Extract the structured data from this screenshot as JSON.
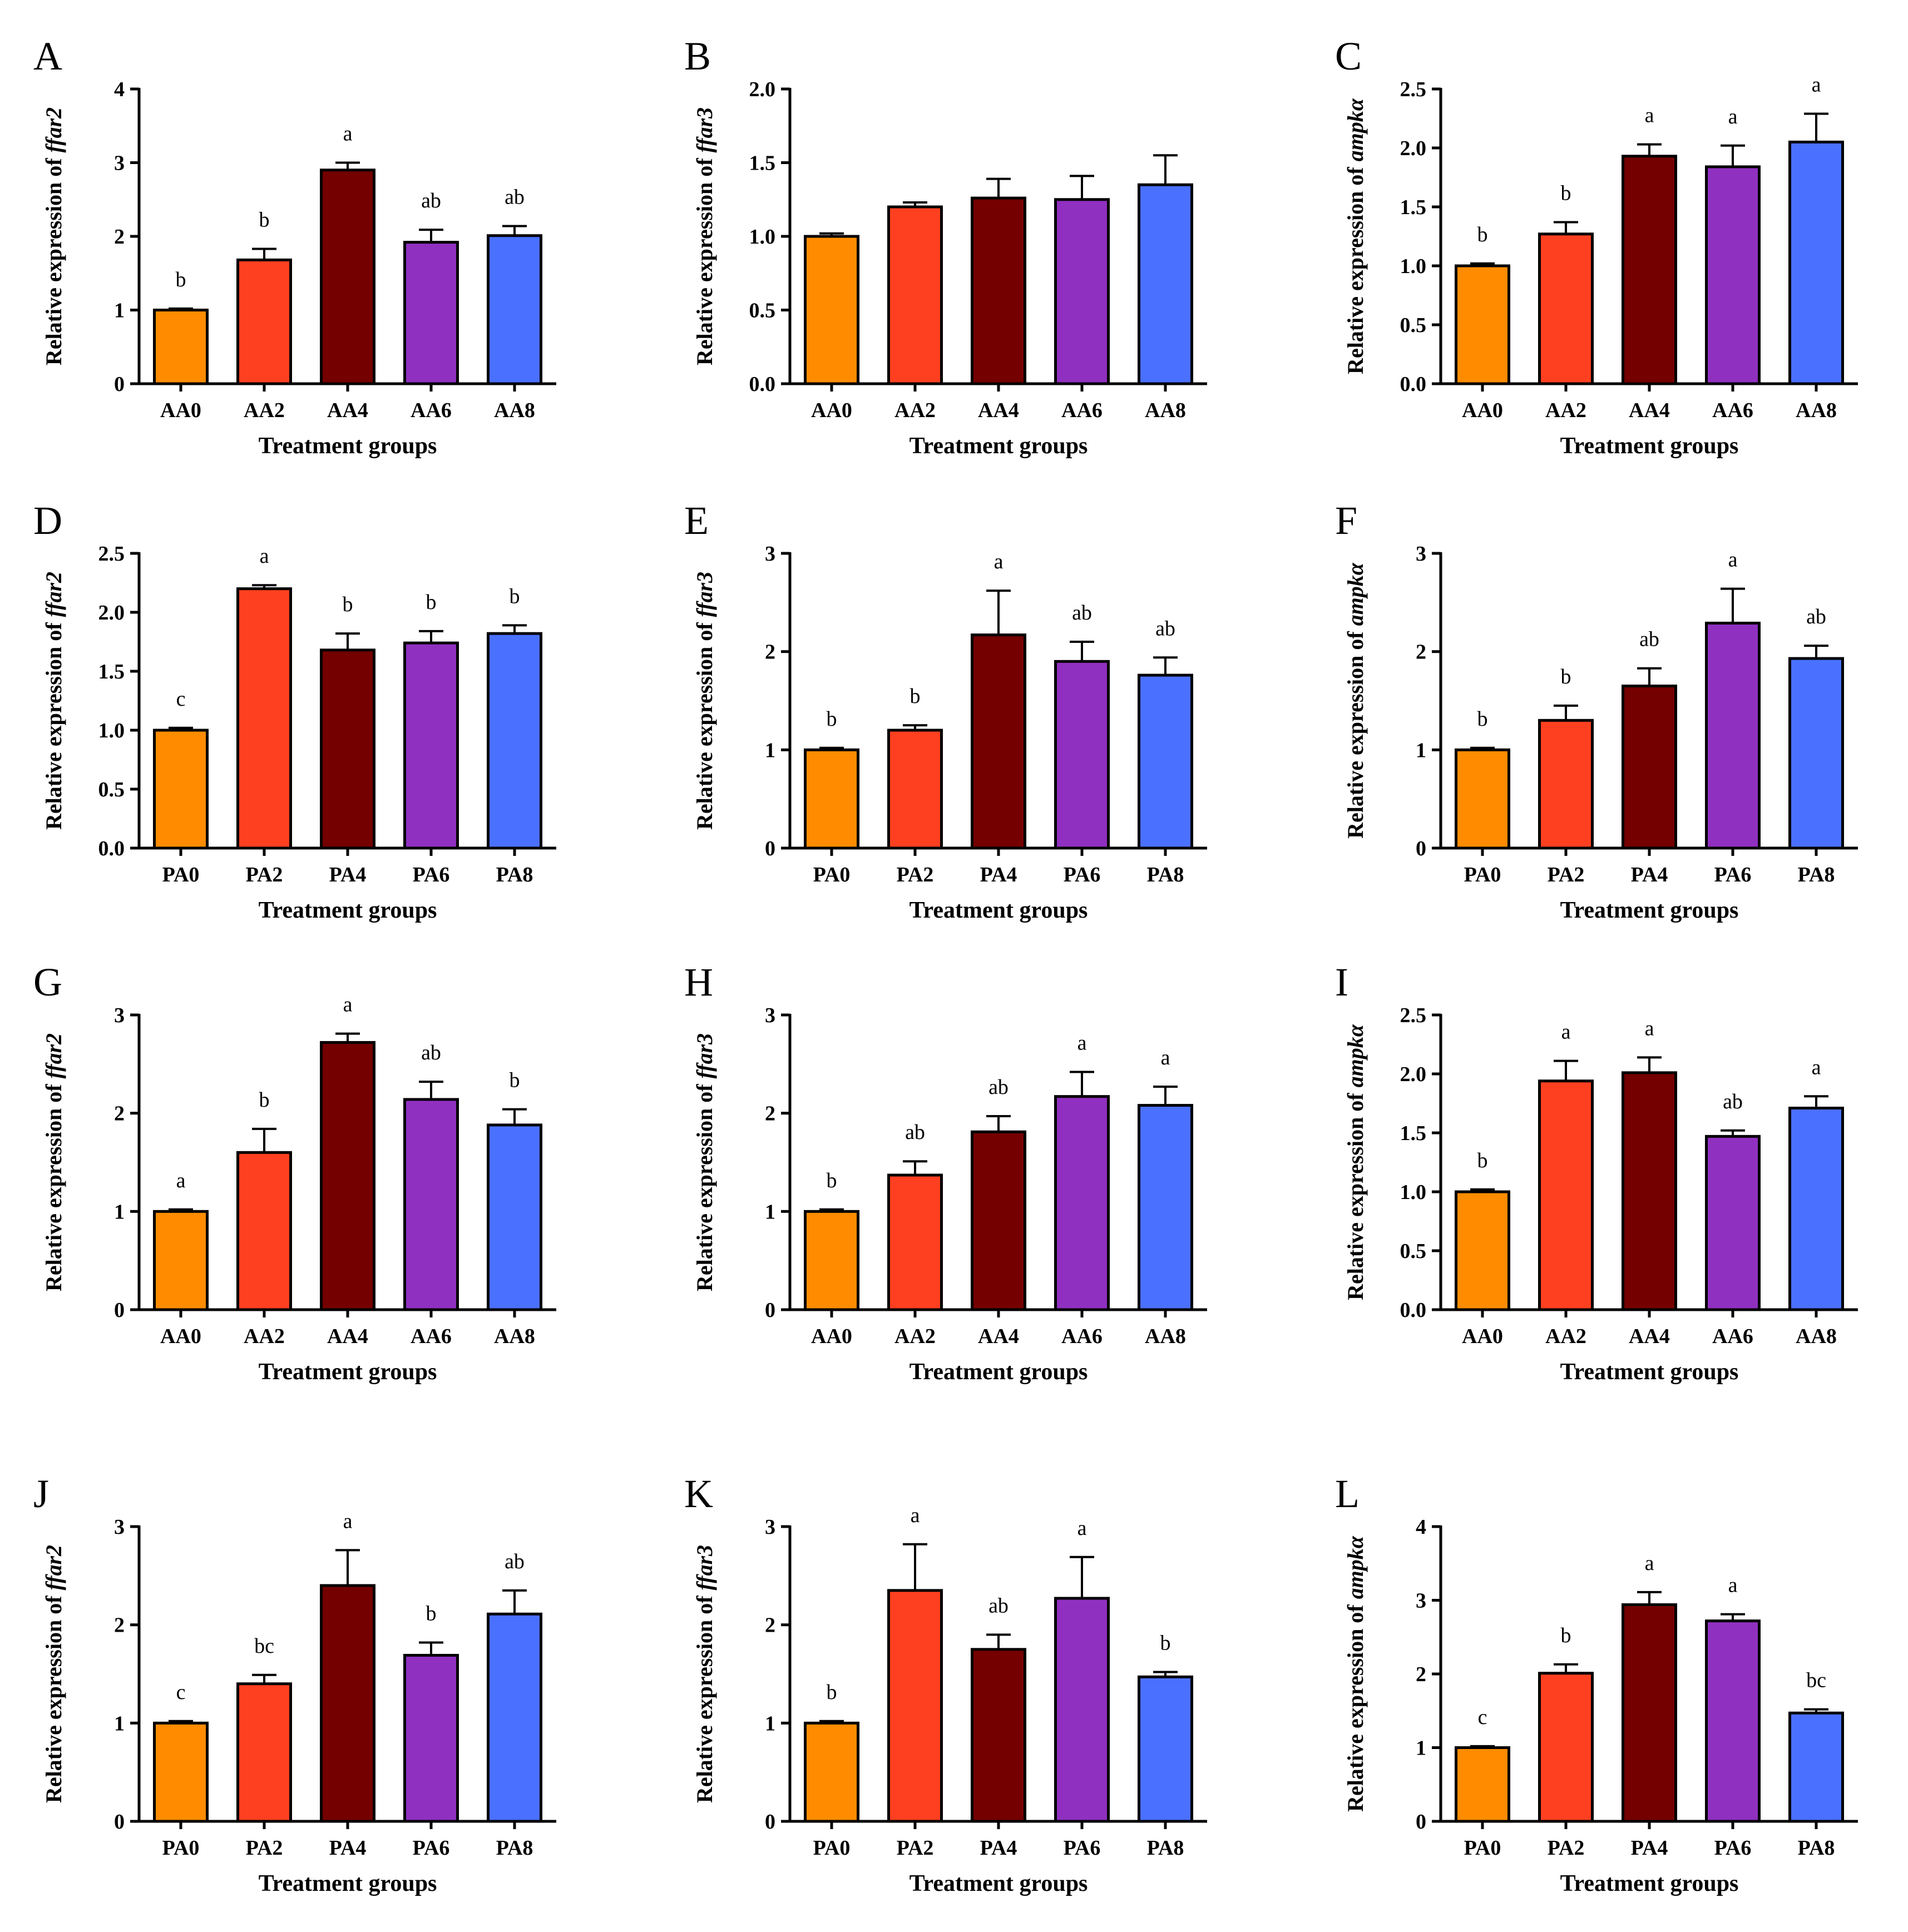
{
  "chart_data": [
    {
      "panel": "A",
      "type": "bar",
      "ylabel_prefix": "Relative expression of ",
      "gene": "ffar2",
      "xlabel": "Treatment groups",
      "categories": [
        "AA0",
        "AA2",
        "AA4",
        "AA6",
        "AA8"
      ],
      "values": [
        1.0,
        1.68,
        2.9,
        1.92,
        2.01
      ],
      "errors": [
        0.02,
        0.15,
        0.1,
        0.17,
        0.13
      ],
      "significance": [
        "b",
        "b",
        "a",
        "ab",
        "ab"
      ],
      "ylim": [
        0,
        4
      ],
      "yticks": [
        "0",
        "1",
        "2",
        "3",
        "4"
      ],
      "colors": [
        "#FF8C00",
        "#FF4020",
        "#740000",
        "#9030C0",
        "#4A70FF"
      ]
    },
    {
      "panel": "B",
      "type": "bar",
      "ylabel_prefix": "Relative expression of ",
      "gene": "ffar3",
      "xlabel": "Treatment groups",
      "categories": [
        "AA0",
        "AA2",
        "AA4",
        "AA6",
        "AA8"
      ],
      "values": [
        1.0,
        1.2,
        1.26,
        1.25,
        1.35
      ],
      "errors": [
        0.02,
        0.03,
        0.13,
        0.16,
        0.2
      ],
      "significance": [
        "",
        "",
        "",
        "",
        ""
      ],
      "ylim": [
        0,
        2
      ],
      "yticks": [
        "0.0",
        "0.5",
        "1.0",
        "1.5",
        "2.0"
      ],
      "colors": [
        "#FF8C00",
        "#FF4020",
        "#740000",
        "#9030C0",
        "#4A70FF"
      ]
    },
    {
      "panel": "C",
      "type": "bar",
      "ylabel_prefix": "Relative expression of ",
      "gene": "ampkα",
      "xlabel": "Treatment groups",
      "categories": [
        "AA0",
        "AA2",
        "AA4",
        "AA6",
        "AA8"
      ],
      "values": [
        1.0,
        1.27,
        1.93,
        1.84,
        2.05
      ],
      "errors": [
        0.02,
        0.1,
        0.1,
        0.18,
        0.24
      ],
      "significance": [
        "b",
        "b",
        "a",
        "a",
        "a"
      ],
      "ylim": [
        0,
        2.5
      ],
      "yticks": [
        "0.0",
        "0.5",
        "1.0",
        "1.5",
        "2.0",
        "2.5"
      ],
      "colors": [
        "#FF8C00",
        "#FF4020",
        "#740000",
        "#9030C0",
        "#4A70FF"
      ]
    },
    {
      "panel": "D",
      "type": "bar",
      "ylabel_prefix": "Relative expression of ",
      "gene": "ffar2",
      "xlabel": "Treatment groups",
      "categories": [
        "PA0",
        "PA2",
        "PA4",
        "PA6",
        "PA8"
      ],
      "values": [
        1.0,
        2.2,
        1.68,
        1.74,
        1.82
      ],
      "errors": [
        0.02,
        0.03,
        0.14,
        0.1,
        0.07
      ],
      "significance": [
        "c",
        "a",
        "b",
        "b",
        "b"
      ],
      "ylim": [
        0,
        2.5
      ],
      "yticks": [
        "0.0",
        "0.5",
        "1.0",
        "1.5",
        "2.0",
        "2.5"
      ],
      "colors": [
        "#FF8C00",
        "#FF4020",
        "#740000",
        "#9030C0",
        "#4A70FF"
      ]
    },
    {
      "panel": "E",
      "type": "bar",
      "ylabel_prefix": "Relative expression of ",
      "gene": "ffar3",
      "xlabel": "Treatment groups",
      "categories": [
        "PA0",
        "PA2",
        "PA4",
        "PA6",
        "PA8"
      ],
      "values": [
        1.0,
        1.2,
        2.17,
        1.9,
        1.76
      ],
      "errors": [
        0.02,
        0.05,
        0.45,
        0.2,
        0.18
      ],
      "significance": [
        "b",
        "b",
        "a",
        "ab",
        "ab"
      ],
      "ylim": [
        0,
        3
      ],
      "yticks": [
        "0",
        "1",
        "2",
        "3"
      ],
      "colors": [
        "#FF8C00",
        "#FF4020",
        "#740000",
        "#9030C0",
        "#4A70FF"
      ]
    },
    {
      "panel": "F",
      "type": "bar",
      "ylabel_prefix": "Relative expression of ",
      "gene": "ampkα",
      "xlabel": "Treatment groups",
      "categories": [
        "PA0",
        "PA2",
        "PA4",
        "PA6",
        "PA8"
      ],
      "values": [
        1.0,
        1.3,
        1.65,
        2.29,
        1.93
      ],
      "errors": [
        0.02,
        0.15,
        0.18,
        0.35,
        0.13
      ],
      "significance": [
        "b",
        "b",
        "ab",
        "a",
        "ab"
      ],
      "ylim": [
        0,
        3
      ],
      "yticks": [
        "0",
        "1",
        "2",
        "3"
      ],
      "colors": [
        "#FF8C00",
        "#FF4020",
        "#740000",
        "#9030C0",
        "#4A70FF"
      ]
    },
    {
      "panel": "G",
      "type": "bar",
      "ylabel_prefix": "Relative expression of ",
      "gene": "ffar2",
      "xlabel": "Treatment groups",
      "categories": [
        "AA0",
        "AA2",
        "AA4",
        "AA6",
        "AA8"
      ],
      "values": [
        1.0,
        1.6,
        2.72,
        2.14,
        1.88
      ],
      "errors": [
        0.02,
        0.24,
        0.09,
        0.18,
        0.16
      ],
      "significance": [
        "a",
        "b",
        "a",
        "ab",
        "b"
      ],
      "ylim": [
        0,
        3
      ],
      "yticks": [
        "0",
        "1",
        "2",
        "3"
      ],
      "colors": [
        "#FF8C00",
        "#FF4020",
        "#740000",
        "#9030C0",
        "#4A70FF"
      ]
    },
    {
      "panel": "H",
      "type": "bar",
      "ylabel_prefix": "Relative expression of ",
      "gene": "ffar3",
      "xlabel": "Treatment groups",
      "categories": [
        "AA0",
        "AA2",
        "AA4",
        "AA6",
        "AA8"
      ],
      "values": [
        1.0,
        1.37,
        1.81,
        2.17,
        2.08
      ],
      "errors": [
        0.02,
        0.14,
        0.16,
        0.25,
        0.19
      ],
      "significance": [
        "b",
        "ab",
        "ab",
        "a",
        "a"
      ],
      "ylim": [
        0,
        3
      ],
      "yticks": [
        "0",
        "1",
        "2",
        "3"
      ],
      "colors": [
        "#FF8C00",
        "#FF4020",
        "#740000",
        "#9030C0",
        "#4A70FF"
      ]
    },
    {
      "panel": "I",
      "type": "bar",
      "ylabel_prefix": "Relative expression of ",
      "gene": "ampkα",
      "xlabel": "Treatment groups",
      "categories": [
        "AA0",
        "AA2",
        "AA4",
        "AA6",
        "AA8"
      ],
      "values": [
        1.0,
        1.94,
        2.01,
        1.47,
        1.71
      ],
      "errors": [
        0.02,
        0.17,
        0.13,
        0.05,
        0.1
      ],
      "significance": [
        "b",
        "a",
        "a",
        "ab",
        "a"
      ],
      "ylim": [
        0,
        2.5
      ],
      "yticks": [
        "0.0",
        "0.5",
        "1.0",
        "1.5",
        "2.0",
        "2.5"
      ],
      "colors": [
        "#FF8C00",
        "#FF4020",
        "#740000",
        "#9030C0",
        "#4A70FF"
      ]
    },
    {
      "panel": "J",
      "type": "bar",
      "ylabel_prefix": "Relative expression of ",
      "gene": "ffar2",
      "xlabel": "Treatment groups",
      "categories": [
        "PA0",
        "PA2",
        "PA4",
        "PA6",
        "PA8"
      ],
      "values": [
        1.0,
        1.4,
        2.4,
        1.69,
        2.11
      ],
      "errors": [
        0.02,
        0.09,
        0.36,
        0.13,
        0.24
      ],
      "significance": [
        "c",
        "bc",
        "a",
        "b",
        "ab"
      ],
      "ylim": [
        0,
        3
      ],
      "yticks": [
        "0",
        "1",
        "2",
        "3"
      ],
      "colors": [
        "#FF8C00",
        "#FF4020",
        "#740000",
        "#9030C0",
        "#4A70FF"
      ]
    },
    {
      "panel": "K",
      "type": "bar",
      "ylabel_prefix": "Relative expression of ",
      "gene": "ffar3",
      "xlabel": "Treatment groups",
      "categories": [
        "PA0",
        "PA2",
        "PA4",
        "PA6",
        "PA8"
      ],
      "values": [
        1.0,
        2.35,
        1.75,
        2.27,
        1.47
      ],
      "errors": [
        0.02,
        0.47,
        0.15,
        0.42,
        0.05
      ],
      "significance": [
        "b",
        "a",
        "ab",
        "a",
        "b"
      ],
      "ylim": [
        0,
        3
      ],
      "yticks": [
        "0",
        "1",
        "2",
        "3"
      ],
      "colors": [
        "#FF8C00",
        "#FF4020",
        "#740000",
        "#9030C0",
        "#4A70FF"
      ]
    },
    {
      "panel": "L",
      "type": "bar",
      "ylabel_prefix": "Relative expression of ",
      "gene": "ampkα",
      "xlabel": "Treatment groups",
      "categories": [
        "PA0",
        "PA2",
        "PA4",
        "PA6",
        "PA8"
      ],
      "values": [
        1.0,
        2.01,
        2.94,
        2.72,
        1.47
      ],
      "errors": [
        0.02,
        0.12,
        0.17,
        0.09,
        0.05
      ],
      "significance": [
        "c",
        "b",
        "a",
        "a",
        "bc"
      ],
      "ylim": [
        0,
        4
      ],
      "yticks": [
        "0",
        "1",
        "2",
        "3",
        "4"
      ],
      "colors": [
        "#FF8C00",
        "#FF4020",
        "#740000",
        "#9030C0",
        "#4A70FF"
      ]
    }
  ]
}
